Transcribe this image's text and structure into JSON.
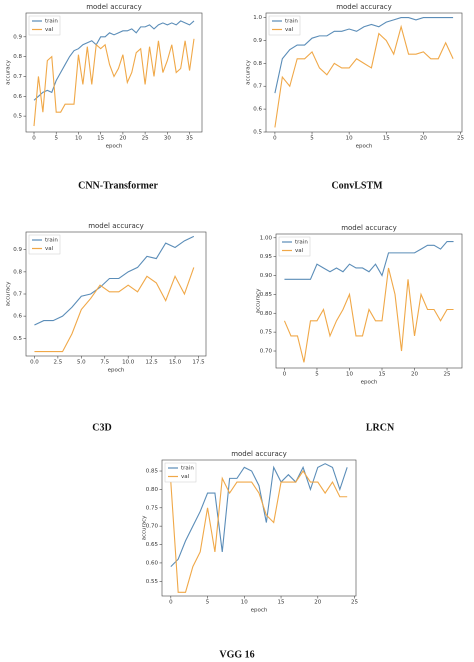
{
  "chart_data": [
    {
      "type": "line",
      "title": "model accuracy",
      "x_label": "epoch",
      "y_label": "accuracy",
      "caption": "CNN-Transformer",
      "legend": "upper left",
      "x": [
        0,
        1,
        2,
        3,
        4,
        5,
        6,
        7,
        8,
        9,
        10,
        11,
        12,
        13,
        14,
        15,
        16,
        17,
        18,
        19,
        20,
        21,
        22,
        23,
        24,
        25,
        26,
        27,
        28,
        29,
        30,
        31,
        32,
        33,
        34,
        35,
        36
      ],
      "xlim": [
        -1.8,
        37.8
      ],
      "xticks": [
        0,
        5,
        10,
        15,
        20,
        25,
        30,
        35
      ],
      "ylim": [
        0.42,
        1.02
      ],
      "yticks": [
        0.5,
        0.6,
        0.7,
        0.8,
        0.9
      ],
      "series": [
        {
          "name": "train",
          "color": "#5b8db8",
          "values": [
            0.58,
            0.6,
            0.62,
            0.63,
            0.62,
            0.68,
            0.72,
            0.76,
            0.8,
            0.83,
            0.84,
            0.86,
            0.87,
            0.88,
            0.86,
            0.9,
            0.9,
            0.92,
            0.91,
            0.92,
            0.93,
            0.93,
            0.94,
            0.92,
            0.95,
            0.95,
            0.96,
            0.94,
            0.96,
            0.97,
            0.96,
            0.97,
            0.96,
            0.98,
            0.97,
            0.96,
            0.98
          ]
        },
        {
          "name": "val",
          "color": "#f0a848",
          "values": [
            0.45,
            0.7,
            0.52,
            0.78,
            0.8,
            0.52,
            0.52,
            0.56,
            0.56,
            0.56,
            0.81,
            0.66,
            0.85,
            0.66,
            0.86,
            0.84,
            0.86,
            0.76,
            0.7,
            0.74,
            0.81,
            0.67,
            0.72,
            0.82,
            0.84,
            0.66,
            0.85,
            0.7,
            0.88,
            0.72,
            0.78,
            0.86,
            0.72,
            0.74,
            0.88,
            0.73,
            0.89
          ]
        }
      ]
    },
    {
      "type": "line",
      "title": "model accuracy",
      "x_label": "epoch",
      "y_label": "accuracy",
      "caption": "ConvLSTM",
      "legend": "upper left",
      "x": [
        0,
        1,
        2,
        3,
        4,
        5,
        6,
        7,
        8,
        9,
        10,
        11,
        12,
        13,
        14,
        15,
        16,
        17,
        18,
        19,
        20,
        21,
        22,
        23,
        24
      ],
      "xlim": [
        -1.2,
        25.2
      ],
      "xticks": [
        0,
        5,
        10,
        15,
        20,
        25
      ],
      "ylim": [
        0.5,
        1.02
      ],
      "yticks": [
        0.5,
        0.6,
        0.7,
        0.8,
        0.9,
        {
          "value": 1.0,
          "label": "1.0"
        }
      ],
      "series": [
        {
          "name": "train",
          "color": "#5b8db8",
          "values": [
            0.67,
            0.82,
            0.86,
            0.88,
            0.88,
            0.91,
            0.92,
            0.92,
            0.94,
            0.94,
            0.95,
            0.94,
            0.96,
            0.97,
            0.96,
            0.98,
            0.99,
            1.0,
            1.0,
            0.99,
            1.0,
            1.0,
            1.0,
            1.0,
            1.0
          ]
        },
        {
          "name": "val",
          "color": "#f0a848",
          "values": [
            0.52,
            0.74,
            0.7,
            0.82,
            0.82,
            0.85,
            0.78,
            0.75,
            0.8,
            0.78,
            0.78,
            0.82,
            0.8,
            0.78,
            0.93,
            0.9,
            0.84,
            0.96,
            0.84,
            0.84,
            0.85,
            0.82,
            0.82,
            0.89,
            0.82
          ]
        }
      ]
    },
    {
      "type": "line",
      "title": "model accuracy",
      "x_label": "epoch",
      "y_label": "accuracy",
      "caption": "C3D",
      "legend": "upper left",
      "x": [
        0,
        1,
        2,
        3,
        4,
        5,
        6,
        7,
        8,
        9,
        10,
        11,
        12,
        13,
        14,
        15,
        16,
        17
      ],
      "xlim": [
        -0.9,
        18.3
      ],
      "xticks": [
        {
          "value": 0,
          "label": "0.0"
        },
        2.5,
        {
          "value": 5,
          "label": "5.0"
        },
        7.5,
        {
          "value": 10,
          "label": "10.0"
        },
        12.5,
        {
          "value": 15,
          "label": "15.0"
        },
        17.5
      ],
      "ylim": [
        0.42,
        0.98
      ],
      "yticks": [
        0.5,
        0.6,
        0.7,
        0.8,
        0.9
      ],
      "series": [
        {
          "name": "train",
          "color": "#5b8db8",
          "values": [
            0.56,
            0.58,
            0.58,
            0.6,
            0.64,
            0.69,
            0.7,
            0.73,
            0.77,
            0.77,
            0.8,
            0.82,
            0.87,
            0.86,
            0.93,
            0.91,
            0.94,
            0.96
          ]
        },
        {
          "name": "val",
          "color": "#f0a848",
          "values": [
            0.44,
            0.44,
            0.44,
            0.44,
            0.52,
            0.63,
            0.68,
            0.74,
            0.71,
            0.71,
            0.74,
            0.71,
            0.78,
            0.75,
            0.67,
            0.78,
            0.7,
            0.82
          ]
        }
      ]
    },
    {
      "type": "line",
      "title": "model accuracy",
      "x_label": "epoch",
      "y_label": "accuracy",
      "caption": "LRCN",
      "legend": "upper left",
      "x": [
        0,
        1,
        2,
        3,
        4,
        5,
        6,
        7,
        8,
        9,
        10,
        11,
        12,
        13,
        14,
        15,
        16,
        17,
        18,
        19,
        20,
        21,
        22,
        23,
        24,
        25,
        26
      ],
      "xlim": [
        -1.3,
        27.3
      ],
      "xticks": [
        0,
        5,
        10,
        15,
        20,
        25
      ],
      "ylim": [
        0.655,
        1.01
      ],
      "yticks": [
        {
          "value": 0.7,
          "label": "0.70"
        },
        0.75,
        {
          "value": 0.8,
          "label": "0.80"
        },
        0.85,
        {
          "value": 0.9,
          "label": "0.90"
        },
        0.95,
        {
          "value": 1.0,
          "label": "1.00"
        }
      ],
      "series": [
        {
          "name": "train",
          "color": "#5b8db8",
          "values": [
            0.89,
            0.89,
            0.89,
            0.89,
            0.89,
            0.93,
            0.92,
            0.91,
            0.92,
            0.91,
            0.93,
            0.92,
            0.92,
            0.91,
            0.93,
            0.9,
            0.96,
            0.96,
            0.96,
            0.96,
            0.96,
            0.97,
            0.98,
            0.98,
            0.97,
            0.99,
            0.99
          ]
        },
        {
          "name": "val",
          "color": "#f0a848",
          "values": [
            0.78,
            0.74,
            0.74,
            0.67,
            0.78,
            0.78,
            0.81,
            0.74,
            0.78,
            0.81,
            0.85,
            0.74,
            0.74,
            0.81,
            0.78,
            0.78,
            0.92,
            0.85,
            0.7,
            0.89,
            0.74,
            0.85,
            0.81,
            0.81,
            0.78,
            0.81,
            0.81
          ]
        }
      ]
    },
    {
      "type": "line",
      "title": "model accuracy",
      "x_label": "epoch",
      "y_label": "accuracy",
      "caption": "VGG 16",
      "legend": "upper left",
      "x": [
        0,
        1,
        2,
        3,
        4,
        5,
        6,
        7,
        8,
        9,
        10,
        11,
        12,
        13,
        14,
        15,
        16,
        17,
        18,
        19,
        20,
        21,
        22,
        23,
        24
      ],
      "xlim": [
        -1.2,
        25.2
      ],
      "xticks": [
        0,
        5,
        10,
        15,
        20,
        25
      ],
      "ylim": [
        0.51,
        0.88
      ],
      "yticks": [
        0.55,
        {
          "value": 0.6,
          "label": "0.60"
        },
        0.65,
        {
          "value": 0.7,
          "label": "0.70"
        },
        0.75,
        {
          "value": 0.8,
          "label": "0.80"
        },
        0.85
      ],
      "series": [
        {
          "name": "train",
          "color": "#5b8db8",
          "values": [
            0.59,
            0.61,
            0.66,
            0.7,
            0.74,
            0.79,
            0.79,
            0.63,
            0.83,
            0.83,
            0.86,
            0.85,
            0.81,
            0.71,
            0.86,
            0.82,
            0.84,
            0.82,
            0.86,
            0.8,
            0.86,
            0.87,
            0.86,
            0.8,
            0.86
          ]
        },
        {
          "name": "val",
          "color": "#f0a848",
          "values": [
            0.82,
            0.52,
            0.52,
            0.59,
            0.63,
            0.75,
            0.63,
            0.83,
            0.79,
            0.82,
            0.82,
            0.82,
            0.79,
            0.73,
            0.71,
            0.82,
            0.82,
            0.82,
            0.85,
            0.82,
            0.82,
            0.79,
            0.82,
            0.78,
            0.78
          ]
        }
      ]
    }
  ]
}
